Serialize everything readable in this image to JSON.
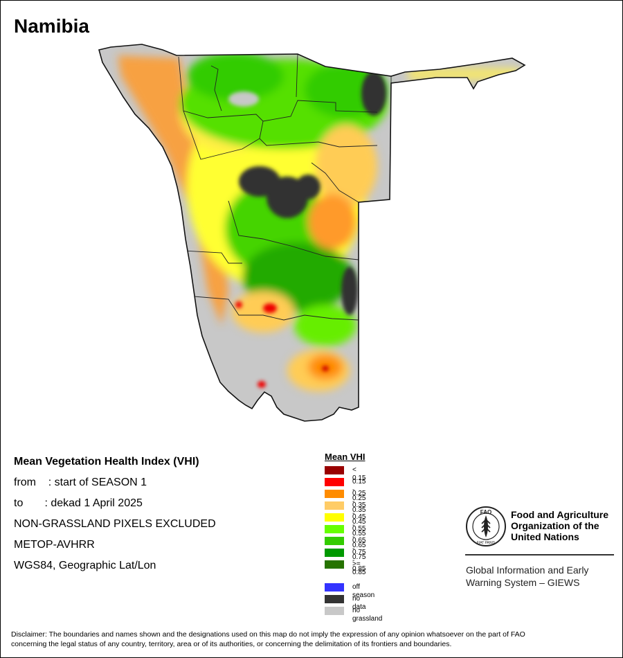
{
  "title": "Namibia",
  "info": {
    "heading": "Mean Vegetation Health Index (VHI)",
    "from_line": "from    : start of SEASON 1",
    "to_line": "to       : dekad 1 April 2025",
    "note": "NON-GRASSLAND PIXELS EXCLUDED",
    "sensor": "METOP-AVHRR",
    "projection": "WGS84, Geographic Lat/Lon"
  },
  "legend": {
    "title": "Mean VHI",
    "classes": [
      {
        "label": "< 0.15",
        "color": "#990000"
      },
      {
        "label": "0.15 - 0.25",
        "color": "#ff0000"
      },
      {
        "label": "0.25 - 0.35",
        "color": "#ff8c00"
      },
      {
        "label": "0.35 - 0.45",
        "color": "#ffcc66"
      },
      {
        "label": "0.45 - 0.55",
        "color": "#ffff00"
      },
      {
        "label": "0.55 - 0.65",
        "color": "#66ff00"
      },
      {
        "label": "0.65 - 0.75",
        "color": "#33cc00"
      },
      {
        "label": "0.75 - 0.85",
        "color": "#009900"
      },
      {
        "label": ">= 0.85",
        "color": "#267300"
      }
    ],
    "extras": [
      {
        "label": "off season",
        "color": "#3333ff"
      },
      {
        "label": "no data",
        "color": "#333333"
      },
      {
        "label": "no grassland",
        "color": "#c8c8c8"
      }
    ]
  },
  "logo": {
    "org_line1": "Food and Agriculture",
    "org_line2": "Organization of the",
    "org_line3": "United Nations",
    "giews_line1": "Global Information and Early",
    "giews_line2": "Warning System – GIEWS",
    "emblem_text": "FAO",
    "motto": "FIAT PANIS"
  },
  "disclaimer_line1": "Disclaimer: The boundaries and names shown and the designations used on this map do not imply the expression of any opinion whatsoever on the part of FAO",
  "disclaimer_line2": "concerning the legal status of any country, territory, area or of its authorities, or concerning the delimitation of its frontiers and boundaries."
}
